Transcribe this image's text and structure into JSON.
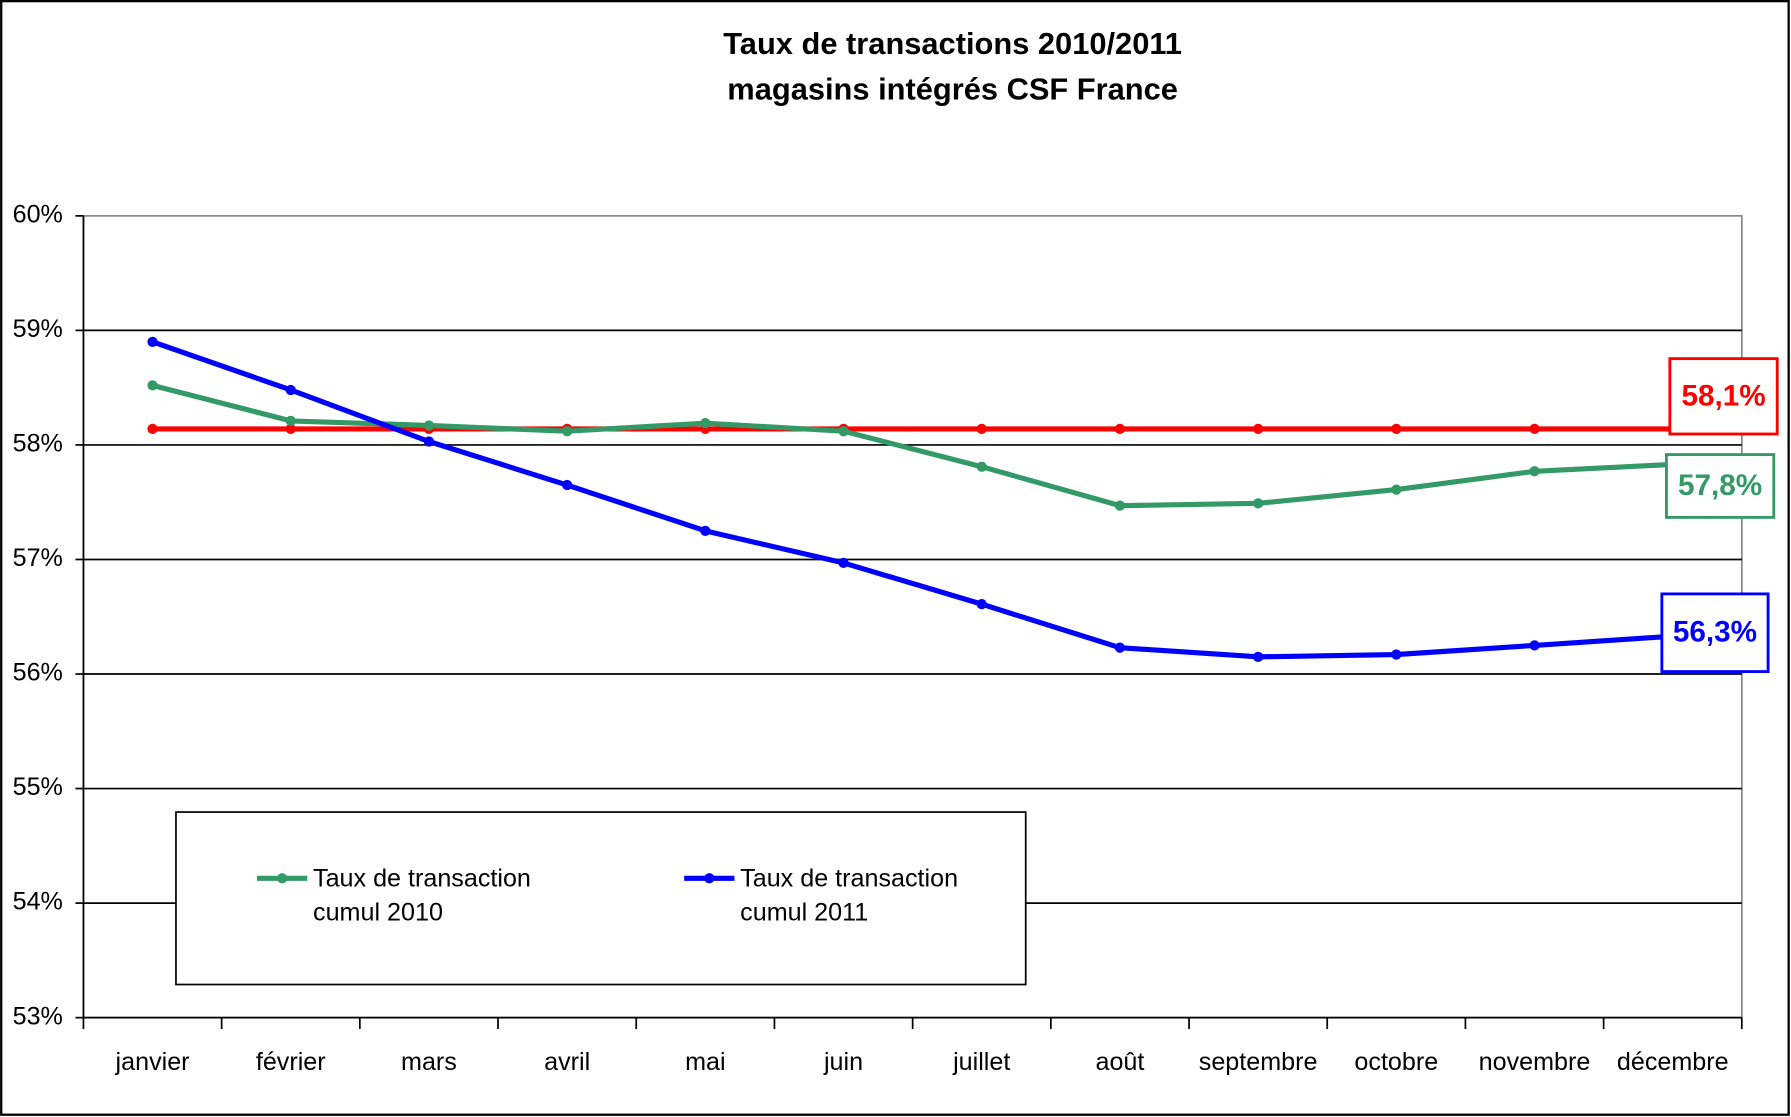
{
  "chart_data": {
    "type": "line",
    "title": "Taux de transactions 2010/2011",
    "subtitle": "magasins intégrés CSF France",
    "categories": [
      "janvier",
      "février",
      "mars",
      "avril",
      "mai",
      "juin",
      "juillet",
      "août",
      "septembre",
      "octobre",
      "novembre",
      "décembre"
    ],
    "series": [
      {
        "name": "Taux de transaction cumul 2010",
        "color": "#339966",
        "values": [
          58.52,
          58.21,
          58.17,
          58.12,
          58.19,
          58.12,
          57.81,
          57.47,
          57.49,
          57.61,
          57.77,
          57.83
        ],
        "value_labels": [
          null,
          null,
          null,
          null,
          null,
          null,
          null,
          null,
          null,
          null,
          null,
          "57,8%"
        ]
      },
      {
        "name": "Taux de transaction cumul 2011",
        "color": "#0000ff",
        "values": [
          58.9,
          58.48,
          58.03,
          57.65,
          57.25,
          56.97,
          56.61,
          56.23,
          56.15,
          56.17,
          56.25,
          56.33
        ],
        "value_labels": [
          null,
          null,
          null,
          null,
          null,
          null,
          null,
          null,
          null,
          null,
          null,
          "56,3%"
        ]
      },
      {
        "color": "#ff0000",
        "values": [
          58.14,
          58.14,
          58.14,
          58.14,
          58.14,
          58.14,
          58.14,
          58.14,
          58.14,
          58.14,
          58.14,
          58.14
        ],
        "value_labels": [
          null,
          null,
          null,
          null,
          null,
          null,
          null,
          null,
          null,
          null,
          null,
          "58,1%"
        ]
      }
    ],
    "ylim": [
      53,
      60
    ],
    "yticks": [
      {
        "value": 53,
        "label": "53%"
      },
      {
        "value": 54,
        "label": "54%"
      },
      {
        "value": 55,
        "label": "55%"
      },
      {
        "value": 56,
        "label": "56%"
      },
      {
        "value": 57,
        "label": "57%"
      },
      {
        "value": 58,
        "label": "58%"
      },
      {
        "value": 59,
        "label": "59%"
      },
      {
        "value": 60,
        "label": "60%"
      }
    ],
    "grid": true
  }
}
